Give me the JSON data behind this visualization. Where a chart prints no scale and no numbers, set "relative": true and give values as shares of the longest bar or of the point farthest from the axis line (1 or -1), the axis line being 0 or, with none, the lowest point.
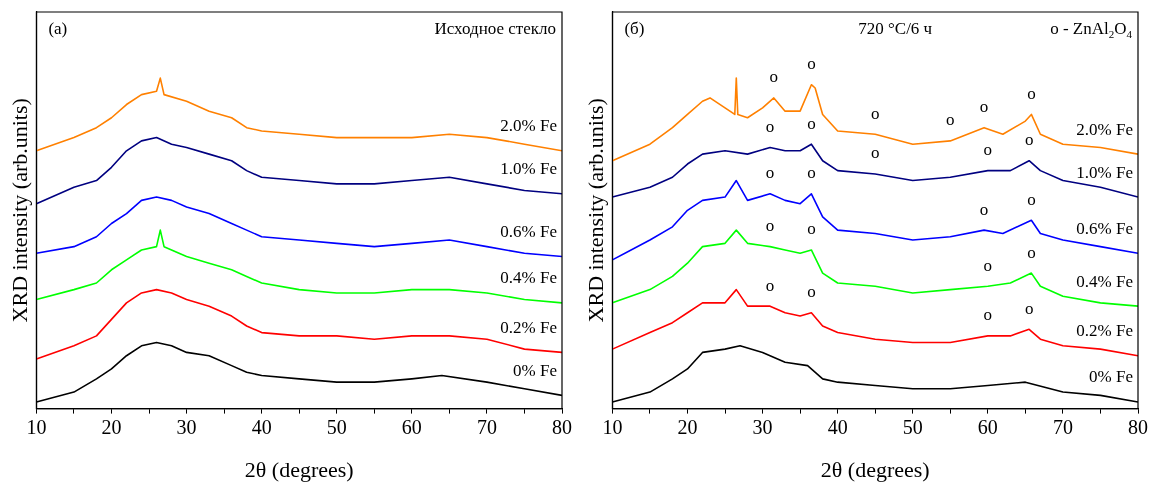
{
  "chart_data": [
    {
      "type": "line",
      "xlabel": "2θ (degrees)",
      "ylabel": "XRD intensity (arb.units)",
      "relative": true,
      "xlim": [
        10,
        80
      ],
      "xticks": [
        10,
        {
          "value": 15,
          "label": null
        },
        20,
        {
          "value": 25,
          "label": null
        },
        30,
        {
          "value": 35,
          "label": null
        },
        40,
        {
          "value": 45,
          "label": null
        },
        50,
        {
          "value": 55,
          "label": null
        },
        60,
        {
          "value": 65,
          "label": null
        },
        70,
        {
          "value": 75,
          "label": null
        },
        80
      ],
      "grid": false,
      "legend": false,
      "marker": "none",
      "line_style": "solid",
      "annotations": [
        "(a)",
        "Исходное стекло"
      ],
      "series": [
        {
          "name": "2.0% Fe",
          "color": "#ff8000",
          "x": [
            10,
            15,
            18,
            20,
            22,
            24,
            26,
            26.5,
            27,
            30,
            33,
            36,
            38,
            40,
            45,
            50,
            55,
            60,
            65,
            70,
            75,
            80
          ],
          "values": [
            0.78,
            0.82,
            0.85,
            0.88,
            0.92,
            0.95,
            0.96,
            1,
            0.95,
            0.93,
            0.9,
            0.88,
            0.85,
            0.84,
            0.83,
            0.82,
            0.82,
            0.82,
            0.83,
            0.82,
            0.8,
            0.78
          ]
        },
        {
          "name": "1.0% Fe",
          "color": "#000080",
          "x": [
            10,
            15,
            18,
            20,
            22,
            24,
            26,
            28,
            30,
            33,
            36,
            38,
            40,
            45,
            50,
            55,
            60,
            65,
            70,
            75,
            80
          ],
          "values": [
            0.62,
            0.67,
            0.69,
            0.73,
            0.78,
            0.81,
            0.82,
            0.8,
            0.79,
            0.77,
            0.75,
            0.72,
            0.7,
            0.69,
            0.68,
            0.68,
            0.69,
            0.7,
            0.68,
            0.66,
            0.65
          ]
        },
        {
          "name": "0.6% Fe",
          "color": "#0000ff",
          "x": [
            10,
            15,
            18,
            20,
            22,
            24,
            26,
            28,
            30,
            33,
            36,
            38,
            40,
            45,
            50,
            55,
            60,
            65,
            70,
            75,
            80
          ],
          "values": [
            0.47,
            0.49,
            0.52,
            0.56,
            0.59,
            0.63,
            0.64,
            0.63,
            0.61,
            0.59,
            0.56,
            0.54,
            0.52,
            0.51,
            0.5,
            0.49,
            0.5,
            0.51,
            0.49,
            0.47,
            0.46
          ]
        },
        {
          "name": "0.4% Fe",
          "color": "#00ff00",
          "x": [
            10,
            15,
            18,
            20,
            22,
            24,
            26,
            26.5,
            27,
            30,
            33,
            36,
            38,
            40,
            45,
            50,
            55,
            60,
            65,
            70,
            75,
            80
          ],
          "values": [
            0.33,
            0.36,
            0.38,
            0.42,
            0.45,
            0.48,
            0.49,
            0.54,
            0.49,
            0.46,
            0.44,
            0.42,
            0.4,
            0.38,
            0.36,
            0.35,
            0.35,
            0.36,
            0.36,
            0.35,
            0.33,
            0.32
          ]
        },
        {
          "name": "0.2% Fe",
          "color": "#ff0000",
          "x": [
            10,
            15,
            18,
            20,
            22,
            24,
            26,
            28,
            30,
            33,
            36,
            38,
            40,
            45,
            50,
            55,
            60,
            65,
            70,
            75,
            80
          ],
          "values": [
            0.15,
            0.19,
            0.22,
            0.27,
            0.32,
            0.35,
            0.36,
            0.35,
            0.33,
            0.31,
            0.28,
            0.25,
            0.23,
            0.22,
            0.22,
            0.21,
            0.22,
            0.22,
            0.21,
            0.18,
            0.17
          ]
        },
        {
          "name": "0% Fe",
          "color": "#000000",
          "x": [
            10,
            15,
            18,
            20,
            22,
            24,
            26,
            28,
            30,
            33,
            36,
            38,
            40,
            45,
            50,
            55,
            60,
            64,
            70,
            75,
            80
          ],
          "values": [
            0.02,
            0.05,
            0.09,
            0.12,
            0.16,
            0.19,
            0.2,
            0.19,
            0.17,
            0.16,
            0.13,
            0.11,
            0.1,
            0.09,
            0.08,
            0.08,
            0.09,
            0.1,
            0.08,
            0.06,
            0.04
          ]
        }
      ]
    },
    {
      "type": "line",
      "xlabel": "2θ (degrees)",
      "ylabel": "XRD intensity (arb.units)",
      "relative": true,
      "xlim": [
        10,
        80
      ],
      "xticks": [
        10,
        {
          "value": 15,
          "label": null
        },
        20,
        {
          "value": 25,
          "label": null
        },
        30,
        {
          "value": 35,
          "label": null
        },
        40,
        {
          "value": 45,
          "label": null
        },
        50,
        {
          "value": 55,
          "label": null
        },
        60,
        {
          "value": 65,
          "label": null
        },
        70,
        {
          "value": 75,
          "label": null
        },
        80
      ],
      "grid": false,
      "legend": false,
      "marker": "none",
      "line_style": "solid",
      "annotations": [
        "(б)",
        "720 °C/6 ч",
        "o - ZnAl$_{2}$O$_{4}$",
        {
          "text": "o",
          "x": 31.5,
          "y": 0.94
        },
        {
          "text": "o",
          "x": 36.5,
          "y": 0.98
        },
        {
          "text": "o",
          "x": 45,
          "y": 0.83
        },
        {
          "text": "o",
          "x": 55,
          "y": 0.81
        },
        {
          "text": "o",
          "x": 59.5,
          "y": 0.85
        },
        {
          "text": "o",
          "x": 65.8,
          "y": 0.89
        },
        {
          "text": "o",
          "x": 31,
          "y": 0.79
        },
        {
          "text": "o",
          "x": 36.5,
          "y": 0.8
        },
        {
          "text": "o",
          "x": 45,
          "y": 0.71
        },
        {
          "text": "o",
          "x": 60,
          "y": 0.72
        },
        {
          "text": "o",
          "x": 65.5,
          "y": 0.75
        },
        {
          "text": "o",
          "x": 31,
          "y": 0.65
        },
        {
          "text": "o",
          "x": 36.5,
          "y": 0.65
        },
        {
          "text": "o",
          "x": 59.5,
          "y": 0.54
        },
        {
          "text": "o",
          "x": 65.8,
          "y": 0.57
        },
        {
          "text": "o",
          "x": 31,
          "y": 0.49
        },
        {
          "text": "o",
          "x": 36.5,
          "y": 0.48
        },
        {
          "text": "o",
          "x": 60,
          "y": 0.37
        },
        {
          "text": "o",
          "x": 65.8,
          "y": 0.41
        },
        {
          "text": "o",
          "x": 31,
          "y": 0.31
        },
        {
          "text": "o",
          "x": 36.5,
          "y": 0.29
        },
        {
          "text": "o",
          "x": 60,
          "y": 0.22
        },
        {
          "text": "o",
          "x": 65.5,
          "y": 0.24
        }
      ],
      "series": [
        {
          "name": "2.0% Fe",
          "color": "#ff8000",
          "x": [
            10,
            15,
            18,
            20,
            22,
            23,
            25,
            26.3,
            26.5,
            26.7,
            28,
            30,
            31.5,
            33,
            35,
            36.5,
            37,
            38,
            40,
            45,
            50,
            55,
            59.5,
            62,
            65,
            65.8,
            67,
            70,
            75,
            80
          ],
          "values": [
            0.75,
            0.8,
            0.85,
            0.89,
            0.93,
            0.94,
            0.91,
            0.89,
            1,
            0.89,
            0.88,
            0.91,
            0.94,
            0.9,
            0.9,
            0.98,
            0.97,
            0.89,
            0.84,
            0.83,
            0.8,
            0.81,
            0.85,
            0.83,
            0.87,
            0.89,
            0.83,
            0.8,
            0.79,
            0.77
          ]
        },
        {
          "name": "1.0% Fe",
          "color": "#000080",
          "x": [
            10,
            15,
            18,
            20,
            22,
            25,
            28,
            31,
            33,
            35,
            36.5,
            38,
            40,
            45,
            50,
            55,
            60,
            63,
            65.5,
            67,
            70,
            75,
            80
          ],
          "values": [
            0.64,
            0.67,
            0.7,
            0.74,
            0.77,
            0.78,
            0.77,
            0.79,
            0.78,
            0.78,
            0.8,
            0.75,
            0.72,
            0.71,
            0.69,
            0.7,
            0.72,
            0.72,
            0.75,
            0.72,
            0.69,
            0.67,
            0.64
          ]
        },
        {
          "name": "0.6% Fe",
          "color": "#0000ff",
          "x": [
            10,
            15,
            18,
            20,
            22,
            25,
            26.5,
            28,
            31,
            33,
            35,
            36.5,
            38,
            40,
            45,
            50,
            55,
            59.5,
            62,
            65.8,
            67,
            70,
            75,
            80
          ],
          "values": [
            0.45,
            0.51,
            0.55,
            0.6,
            0.63,
            0.64,
            0.69,
            0.63,
            0.65,
            0.63,
            0.62,
            0.65,
            0.58,
            0.54,
            0.53,
            0.51,
            0.52,
            0.54,
            0.53,
            0.57,
            0.53,
            0.51,
            0.49,
            0.47
          ]
        },
        {
          "name": "0.4% Fe",
          "color": "#00ff00",
          "x": [
            10,
            15,
            18,
            20,
            22,
            25,
            26.5,
            28,
            31,
            33,
            35,
            36.5,
            38,
            40,
            45,
            50,
            55,
            60,
            63,
            65.8,
            67,
            70,
            75,
            80
          ],
          "values": [
            0.32,
            0.36,
            0.4,
            0.44,
            0.49,
            0.5,
            0.54,
            0.5,
            0.49,
            0.48,
            0.47,
            0.48,
            0.41,
            0.38,
            0.37,
            0.35,
            0.36,
            0.37,
            0.38,
            0.41,
            0.37,
            0.34,
            0.32,
            0.31
          ]
        },
        {
          "name": "0.2% Fe",
          "color": "#ff0000",
          "x": [
            10,
            15,
            18,
            20,
            22,
            25,
            26.5,
            28,
            31,
            33,
            35,
            36.5,
            38,
            40,
            45,
            50,
            55,
            60,
            63,
            65.5,
            67,
            70,
            75,
            80
          ],
          "values": [
            0.18,
            0.23,
            0.26,
            0.29,
            0.32,
            0.32,
            0.36,
            0.31,
            0.31,
            0.29,
            0.28,
            0.29,
            0.25,
            0.23,
            0.21,
            0.2,
            0.2,
            0.22,
            0.22,
            0.24,
            0.21,
            0.19,
            0.18,
            0.16
          ]
        },
        {
          "name": "0% Fe",
          "color": "#000000",
          "x": [
            10,
            15,
            18,
            20,
            22,
            25,
            27,
            30,
            33,
            36,
            38,
            40,
            45,
            50,
            55,
            60,
            65,
            70,
            75,
            80
          ],
          "values": [
            0.02,
            0.05,
            0.09,
            0.12,
            0.17,
            0.18,
            0.19,
            0.17,
            0.14,
            0.13,
            0.09,
            0.08,
            0.07,
            0.06,
            0.06,
            0.07,
            0.08,
            0.05,
            0.04,
            0.02
          ]
        }
      ]
    }
  ]
}
